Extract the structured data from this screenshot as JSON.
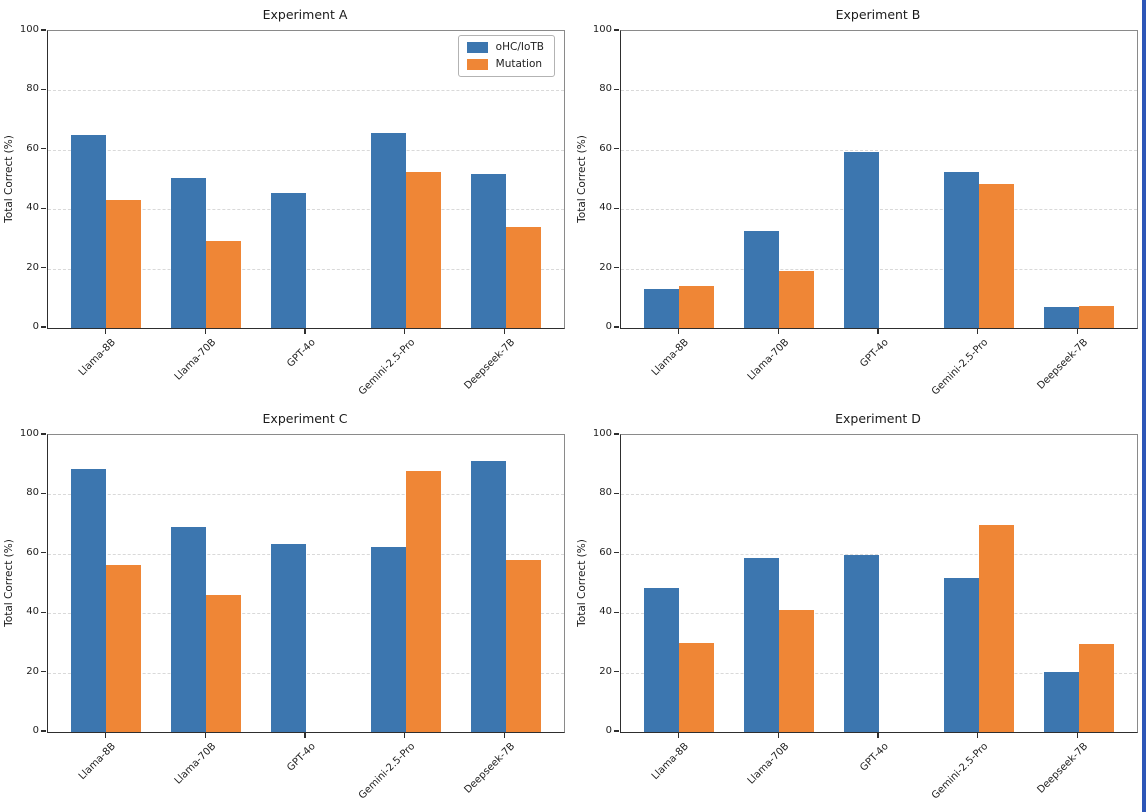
{
  "figure": {
    "background": "#ffffff",
    "edge_strip_color": "#2d56b8",
    "text_color": "#1f1f1f"
  },
  "legend": {
    "position": "upper-right-of-first-panel",
    "entries": [
      {
        "label": "oHC/IoTB",
        "color": "#3c76af"
      },
      {
        "label": "Mutation",
        "color": "#ef8636"
      }
    ]
  },
  "chart_data": [
    {
      "type": "bar",
      "title": "Experiment A",
      "ylabel": "Total Correct (%)",
      "ylim": [
        0,
        100
      ],
      "yticks": [
        0,
        20,
        40,
        60,
        80,
        100
      ],
      "grid": "horizontal-dashed",
      "show_legend": true,
      "categories": [
        "Llama-8B",
        "Llama-70B",
        "GPT-4o",
        "Gemini-2.5-Pro",
        "Deepseek-7B"
      ],
      "series": [
        {
          "name": "oHC/IoTB",
          "color": "#3c76af",
          "values": [
            64.9,
            50.4,
            45.4,
            65.6,
            51.9
          ]
        },
        {
          "name": "Mutation",
          "color": "#ef8636",
          "values": [
            43.0,
            29.3,
            0,
            52.6,
            33.9
          ]
        }
      ]
    },
    {
      "type": "bar",
      "title": "Experiment B",
      "ylabel": "Total Correct (%)",
      "ylim": [
        0,
        100
      ],
      "yticks": [
        0,
        20,
        40,
        60,
        80,
        100
      ],
      "grid": "horizontal-dashed",
      "show_legend": false,
      "categories": [
        "Llama-8B",
        "Llama-70B",
        "GPT-4o",
        "Gemini-2.5-Pro",
        "Deepseek-7B"
      ],
      "series": [
        {
          "name": "oHC/IoTB",
          "color": "#3c76af",
          "values": [
            13.3,
            32.5,
            59.4,
            52.4,
            7.2
          ]
        },
        {
          "name": "Mutation",
          "color": "#ef8636",
          "values": [
            14.2,
            19.2,
            0,
            48.5,
            7.5
          ]
        }
      ]
    },
    {
      "type": "bar",
      "title": "Experiment C",
      "ylabel": "Total Correct (%)",
      "ylim": [
        0,
        100
      ],
      "yticks": [
        0,
        20,
        40,
        60,
        80,
        100
      ],
      "grid": "horizontal-dashed",
      "show_legend": false,
      "categories": [
        "Llama-8B",
        "Llama-70B",
        "GPT-4o",
        "Gemini-2.5-Pro",
        "Deepseek-7B"
      ],
      "series": [
        {
          "name": "oHC/IoTB",
          "color": "#3c76af",
          "values": [
            88.5,
            69.1,
            63.4,
            62.2,
            91.2
          ]
        },
        {
          "name": "Mutation",
          "color": "#ef8636",
          "values": [
            56.2,
            46.2,
            0,
            87.9,
            57.9
          ]
        }
      ]
    },
    {
      "type": "bar",
      "title": "Experiment D",
      "ylabel": "Total Correct (%)",
      "ylim": [
        0,
        100
      ],
      "yticks": [
        0,
        20,
        40,
        60,
        80,
        100
      ],
      "grid": "horizontal-dashed",
      "show_legend": false,
      "categories": [
        "Llama-8B",
        "Llama-70B",
        "GPT-4o",
        "Gemini-2.5-Pro",
        "Deepseek-7B"
      ],
      "series": [
        {
          "name": "oHC/IoTB",
          "color": "#3c76af",
          "values": [
            48.4,
            58.7,
            59.5,
            51.7,
            20.2
          ]
        },
        {
          "name": "Mutation",
          "color": "#ef8636",
          "values": [
            30.0,
            41.0,
            0,
            69.7,
            29.8
          ]
        }
      ]
    }
  ]
}
